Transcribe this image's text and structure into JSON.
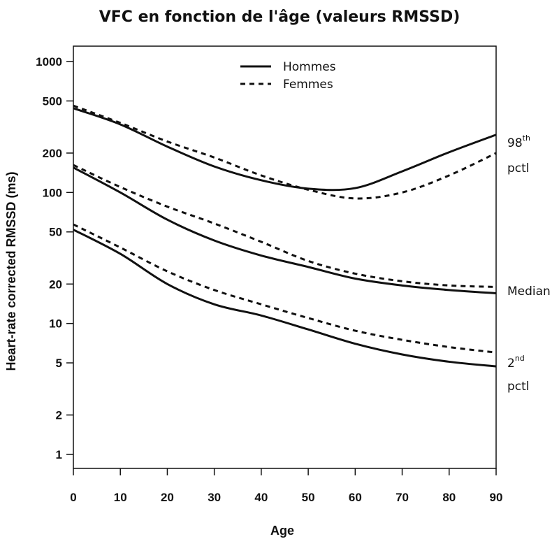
{
  "chart_data": {
    "type": "line",
    "title": "VFC en fonction de l'âge (valeurs RMSSD)",
    "xlabel": "Age",
    "ylabel": "Heart-rate corrected RMSSD (ms)",
    "xlim": [
      0,
      90
    ],
    "ylim": [
      0.7,
      1400
    ],
    "yscale": "log",
    "grid": false,
    "legend_position": "top-center",
    "xticks": [
      0,
      10,
      20,
      30,
      40,
      50,
      60,
      70,
      80,
      90
    ],
    "yticks": [
      1,
      2,
      5,
      10,
      20,
      50,
      100,
      200,
      500,
      1000
    ],
    "legend": [
      {
        "label": "Hommes",
        "style": "solid"
      },
      {
        "label": "Femmes",
        "style": "dashed"
      }
    ],
    "annotations": [
      {
        "text": "98",
        "sup": "th",
        "line2": "pctl",
        "series": "98th"
      },
      {
        "text": "Median",
        "series": "median"
      },
      {
        "text": "2",
        "sup": "nd",
        "line2": "pctl",
        "series": "2nd"
      }
    ],
    "x": [
      0,
      10,
      20,
      30,
      40,
      50,
      60,
      70,
      80,
      90
    ],
    "series": [
      {
        "group": "Hommes",
        "percentile": "98th",
        "style": "solid",
        "values": [
          440,
          331,
          224,
          158,
          124,
          107,
          108,
          145,
          203,
          276
        ]
      },
      {
        "group": "Femmes",
        "percentile": "98th",
        "style": "dashed",
        "values": [
          460,
          340,
          245,
          185,
          135,
          105,
          90,
          100,
          135,
          200
        ]
      },
      {
        "group": "Hommes",
        "percentile": "median",
        "style": "solid",
        "values": [
          155,
          100,
          62,
          43,
          33,
          27,
          22,
          19.5,
          18,
          17
        ]
      },
      {
        "group": "Femmes",
        "percentile": "median",
        "style": "dashed",
        "values": [
          162,
          110,
          78,
          58,
          42,
          30,
          24,
          21,
          19.5,
          19
        ]
      },
      {
        "group": "Hommes",
        "percentile": "2nd",
        "style": "solid",
        "values": [
          52,
          34,
          20,
          14,
          11.5,
          9,
          7,
          5.8,
          5.1,
          4.7
        ]
      },
      {
        "group": "Femmes",
        "percentile": "2nd",
        "style": "dashed",
        "values": [
          57,
          38,
          25,
          18,
          14,
          11,
          8.8,
          7.5,
          6.6,
          6
        ]
      }
    ],
    "line_color": "#111111"
  }
}
